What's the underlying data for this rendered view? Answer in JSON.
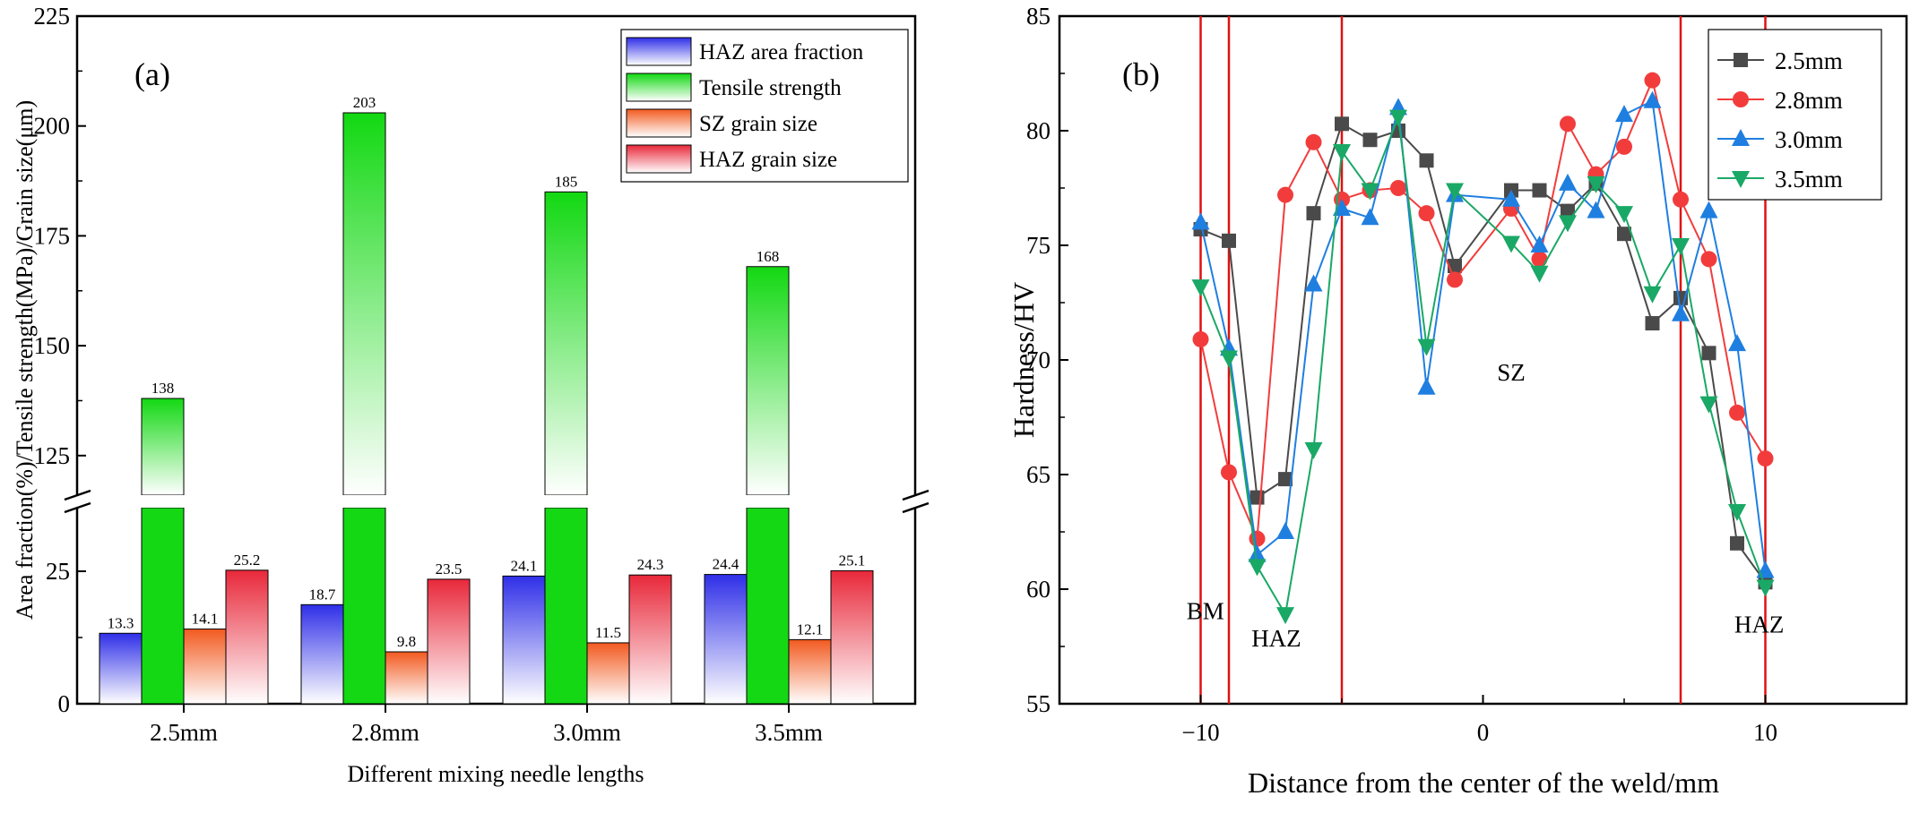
{
  "colors": {
    "haz_area": "#2f2fe8",
    "tensile": "#12d812",
    "sz_grain": "#f25a20",
    "haz_grain": "#e8283a",
    "s25": "#4a4a4a",
    "s28": "#f23c3c",
    "s30": "#1f7fe0",
    "s35": "#1aa866",
    "vline": "#e01010"
  },
  "chart_data": [
    {
      "type": "bar",
      "panel_label": "(a)",
      "title": "",
      "xlabel": "Different mixing needle lengths",
      "ylabel": "Area fraction(%)/Tensile strength(MPa)/Grain size(μm)",
      "categories": [
        "2.5mm",
        "2.8mm",
        "3.0mm",
        "3.5mm"
      ],
      "axis_break": {
        "lower_range": [
          0,
          37
        ],
        "upper_range": [
          116,
          225
        ]
      },
      "lower_ticks": [
        "0",
        "25"
      ],
      "upper_ticks": [
        "125",
        "150",
        "175",
        "200",
        "225"
      ],
      "series": [
        {
          "name": "HAZ area fraction",
          "values": [
            13.3,
            18.7,
            24.1,
            24.4
          ],
          "labels": [
            "13.3",
            "18.7",
            "24.1",
            "24.4"
          ]
        },
        {
          "name": "Tensile strength",
          "values": [
            138,
            203,
            185,
            168
          ],
          "labels": [
            "138",
            "203",
            "185",
            "168"
          ]
        },
        {
          "name": "SZ grain size",
          "values": [
            14.1,
            9.8,
            11.5,
            12.1
          ],
          "labels": [
            "14.1",
            "9.8",
            "11.5",
            "12.1"
          ]
        },
        {
          "name": "HAZ grain size",
          "values": [
            25.2,
            23.5,
            24.3,
            25.1
          ],
          "labels": [
            "25.2",
            "23.5",
            "24.3",
            "25.1"
          ]
        }
      ],
      "legend_position": "top-right"
    },
    {
      "type": "line",
      "panel_label": "(b)",
      "title": "",
      "xlabel": "Distance from the center of the weld/mm",
      "ylabel": "Hardness/HV",
      "xlim": [
        -15,
        15
      ],
      "ylim": [
        55,
        85
      ],
      "x_ticks": [
        "−10",
        "0",
        "10"
      ],
      "y_ticks": [
        "55",
        "60",
        "65",
        "70",
        "75",
        "80",
        "85"
      ],
      "x": [
        -10,
        -9,
        -8,
        -7,
        -6,
        -5,
        -4,
        -3,
        -2,
        -1,
        1,
        2,
        3,
        4,
        5,
        6,
        7,
        8,
        9,
        10
      ],
      "series": [
        {
          "name": "2.5mm",
          "marker": "square",
          "values": [
            75.7,
            75.2,
            64.0,
            64.8,
            76.4,
            80.3,
            79.6,
            80.0,
            78.7,
            74.1,
            77.4,
            77.4,
            76.5,
            77.7,
            75.5,
            71.6,
            72.7,
            70.3,
            62.0,
            60.3
          ]
        },
        {
          "name": "2.8mm",
          "marker": "circle",
          "values": [
            70.9,
            65.1,
            62.2,
            77.2,
            79.5,
            77.0,
            77.4,
            77.5,
            76.4,
            73.5,
            76.6,
            74.4,
            80.3,
            78.1,
            79.3,
            82.2,
            77.0,
            74.4,
            67.7,
            65.7
          ]
        },
        {
          "name": "3.0mm",
          "marker": "triangle-up",
          "values": [
            76.0,
            70.5,
            61.5,
            62.5,
            73.3,
            76.6,
            76.2,
            81.0,
            68.8,
            77.2,
            77.0,
            75.0,
            77.7,
            76.5,
            80.7,
            81.3,
            72.0,
            76.5,
            70.7,
            60.8
          ]
        },
        {
          "name": "3.5mm",
          "marker": "triangle-down",
          "values": [
            73.2,
            70.1,
            61.0,
            58.9,
            66.1,
            79.1,
            77.4,
            80.6,
            70.6,
            77.4,
            75.1,
            73.8,
            76.0,
            77.7,
            76.4,
            72.9,
            75.0,
            68.1,
            63.4,
            60.1
          ]
        }
      ],
      "vertical_lines": [
        -10,
        -9,
        -5,
        7,
        10
      ],
      "annotations": [
        {
          "text": "BM",
          "x": -10.5,
          "y": 58.7
        },
        {
          "text": "HAZ",
          "x": -8.2,
          "y": 57.5
        },
        {
          "text": "SZ",
          "x": 0.5,
          "y": 69.1
        },
        {
          "text": "HAZ",
          "x": 8.9,
          "y": 58.1
        }
      ],
      "legend_position": "top-right"
    }
  ]
}
